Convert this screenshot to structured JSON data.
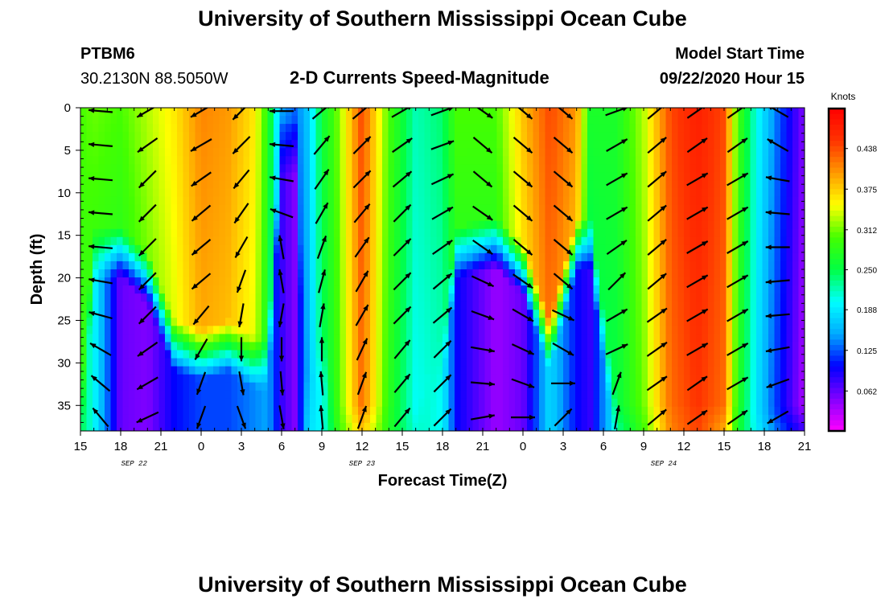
{
  "page": {
    "title_top": "University of Southern Mississippi Ocean Cube",
    "title_bottom": "University of Southern Mississippi Ocean Cube"
  },
  "header": {
    "station_id": "PTBM6",
    "station_coords": "30.2130N 88.5050W",
    "plot_title": "2-D Currents Speed-Magnitude",
    "model_start_label": "Model Start Time",
    "model_start_value": "09/22/2020 Hour 15"
  },
  "chart_data": {
    "type": "heatmap",
    "title": "2-D Currents Speed-Magnitude",
    "xlabel": "Forecast Time(Z)",
    "ylabel": "Depth (ft)",
    "x_ticks": [
      "15",
      "18",
      "21",
      "0",
      "3",
      "6",
      "9",
      "12",
      "15",
      "18",
      "21",
      "0",
      "3",
      "6",
      "9",
      "12",
      "15",
      "18",
      "21"
    ],
    "x_range_hours": [
      0,
      54
    ],
    "date_labels": [
      {
        "text": "SEP 22",
        "hour": 4
      },
      {
        "text": "SEP 23",
        "hour": 21
      },
      {
        "text": "SEP 24",
        "hour": 43.5
      }
    ],
    "y_ticks": [
      0,
      5,
      10,
      15,
      20,
      25,
      30,
      35
    ],
    "y_range_ft": [
      0,
      38
    ],
    "colorbar": {
      "label": "Knots",
      "range": [
        0,
        0.5
      ],
      "ticks": [
        "0.438",
        "0.375",
        "0.312",
        "0.250",
        "0.188",
        "0.125",
        "0.062"
      ],
      "tick_values": [
        0.438,
        0.375,
        0.312,
        0.25,
        0.188,
        0.125,
        0.062
      ]
    },
    "vector_depths_ft": [
      0,
      4,
      8,
      12,
      16,
      20,
      24,
      28,
      32,
      36
    ],
    "speed_by_hour": [
      {
        "hour": 0,
        "surface": 0.3,
        "bottom": 0.25,
        "layer_top_ft": 38
      },
      {
        "hour": 1,
        "surface": 0.31,
        "bottom": 0.2,
        "layer_top_ft": 17
      },
      {
        "hour": 3,
        "surface": 0.3,
        "bottom": 0.06,
        "layer_top_ft": 17
      },
      {
        "hour": 5,
        "surface": 0.33,
        "bottom": 0.05,
        "layer_top_ft": 20
      },
      {
        "hour": 7,
        "surface": 0.36,
        "bottom": 0.1,
        "layer_top_ft": 28
      },
      {
        "hour": 9,
        "surface": 0.41,
        "bottom": 0.12,
        "layer_top_ft": 29
      },
      {
        "hour": 11,
        "surface": 0.4,
        "bottom": 0.12,
        "layer_top_ft": 28
      },
      {
        "hour": 13,
        "surface": 0.36,
        "bottom": 0.14,
        "layer_top_ft": 30
      },
      {
        "hour": 14,
        "surface": 0.28,
        "bottom": 0.15,
        "layer_top_ft": 30
      },
      {
        "hour": 15,
        "surface": 0.15,
        "bottom": 0.08,
        "layer_top_ft": 5
      },
      {
        "hour": 16,
        "surface": 0.13,
        "bottom": 0.05,
        "layer_top_ft": 5
      },
      {
        "hour": 17,
        "surface": 0.17,
        "bottom": 0.18,
        "layer_top_ft": 38
      },
      {
        "hour": 18,
        "surface": 0.26,
        "bottom": 0.2,
        "layer_top_ft": 28
      },
      {
        "hour": 19,
        "surface": 0.3,
        "bottom": 0.27,
        "layer_top_ft": 38
      },
      {
        "hour": 21,
        "surface": 0.44,
        "bottom": 0.34,
        "layer_top_ft": 38
      },
      {
        "hour": 23,
        "surface": 0.3,
        "bottom": 0.27,
        "layer_top_ft": 38
      },
      {
        "hour": 25,
        "surface": 0.22,
        "bottom": 0.22,
        "layer_top_ft": 38
      },
      {
        "hour": 27,
        "surface": 0.24,
        "bottom": 0.2,
        "layer_top_ft": 30
      },
      {
        "hour": 28,
        "surface": 0.3,
        "bottom": 0.1,
        "layer_top_ft": 17
      },
      {
        "hour": 31,
        "surface": 0.3,
        "bottom": 0.04,
        "layer_top_ft": 16
      },
      {
        "hour": 33,
        "surface": 0.38,
        "bottom": 0.06,
        "layer_top_ft": 19
      },
      {
        "hour": 35,
        "surface": 0.44,
        "bottom": 0.18,
        "layer_top_ft": 28
      },
      {
        "hour": 37,
        "surface": 0.4,
        "bottom": 0.1,
        "layer_top_ft": 16
      },
      {
        "hour": 38,
        "surface": 0.27,
        "bottom": 0.08,
        "layer_top_ft": 16
      },
      {
        "hour": 40,
        "surface": 0.27,
        "bottom": 0.2,
        "layer_top_ft": 38
      },
      {
        "hour": 42,
        "surface": 0.33,
        "bottom": 0.28,
        "layer_top_ft": 38
      },
      {
        "hour": 44,
        "surface": 0.44,
        "bottom": 0.4,
        "layer_top_ft": 38
      },
      {
        "hour": 46,
        "surface": 0.47,
        "bottom": 0.44,
        "layer_top_ft": 38
      },
      {
        "hour": 48,
        "surface": 0.44,
        "bottom": 0.36,
        "layer_top_ft": 38
      },
      {
        "hour": 49,
        "surface": 0.3,
        "bottom": 0.26,
        "layer_top_ft": 38
      },
      {
        "hour": 50.5,
        "surface": 0.2,
        "bottom": 0.2,
        "layer_top_ft": 38
      },
      {
        "hour": 52,
        "surface": 0.13,
        "bottom": 0.15,
        "layer_top_ft": 38
      },
      {
        "hour": 54,
        "surface": 0.05,
        "bottom": 0.12,
        "layer_top_ft": 38
      }
    ],
    "vector_columns": [
      {
        "hour": 1.5,
        "angles_deg": [
          175,
          175,
          175,
          175,
          175,
          170,
          165,
          150,
          140,
          130
        ]
      },
      {
        "hour": 5,
        "angles_deg": [
          210,
          215,
          225,
          225,
          225,
          225,
          225,
          215,
          210,
          205
        ]
      },
      {
        "hour": 9,
        "angles_deg": [
          210,
          210,
          215,
          220,
          220,
          220,
          230,
          240,
          250,
          250
        ]
      },
      {
        "hour": 12,
        "angles_deg": [
          225,
          225,
          230,
          235,
          240,
          250,
          260,
          270,
          280,
          290
        ]
      },
      {
        "hour": 15,
        "angles_deg": [
          180,
          175,
          170,
          160,
          100,
          100,
          260,
          270,
          275,
          280
        ]
      },
      {
        "hour": 18,
        "angles_deg": [
          40,
          50,
          55,
          60,
          70,
          75,
          80,
          90,
          95,
          95
        ]
      },
      {
        "hour": 21,
        "angles_deg": [
          40,
          45,
          45,
          50,
          55,
          60,
          60,
          65,
          70,
          70
        ]
      },
      {
        "hour": 24,
        "angles_deg": [
          30,
          35,
          40,
          45,
          45,
          45,
          45,
          50,
          50,
          50
        ]
      },
      {
        "hour": 27,
        "angles_deg": [
          20,
          20,
          25,
          30,
          35,
          40,
          40,
          45,
          45,
          45
        ]
      },
      {
        "hour": 30,
        "angles_deg": [
          325,
          320,
          320,
          325,
          325,
          335,
          340,
          350,
          355,
          10
        ]
      },
      {
        "hour": 33,
        "angles_deg": [
          320,
          320,
          320,
          320,
          320,
          325,
          330,
          335,
          340,
          0
        ]
      },
      {
        "hour": 36,
        "angles_deg": [
          320,
          320,
          320,
          320,
          320,
          320,
          335,
          330,
          0,
          45
        ]
      },
      {
        "hour": 40,
        "angles_deg": [
          20,
          30,
          30,
          30,
          35,
          45,
          30,
          25,
          70,
          80
        ]
      },
      {
        "hour": 43,
        "angles_deg": [
          40,
          40,
          40,
          40,
          40,
          40,
          35,
          35,
          35,
          40
        ]
      },
      {
        "hour": 46,
        "angles_deg": [
          35,
          35,
          30,
          30,
          30,
          30,
          30,
          30,
          35,
          35
        ]
      },
      {
        "hour": 49,
        "angles_deg": [
          35,
          35,
          30,
          30,
          30,
          30,
          30,
          30,
          30,
          35
        ]
      },
      {
        "hour": 52,
        "angles_deg": [
          150,
          150,
          170,
          175,
          180,
          185,
          185,
          190,
          200,
          210
        ]
      }
    ]
  },
  "colors": {
    "arrow": "#000000",
    "axis": "#000000",
    "colormap": [
      "#ff00ff",
      "#8000ff",
      "#0000ff",
      "#00aaff",
      "#00ffff",
      "#00ff44",
      "#44ff00",
      "#ffff00",
      "#ff9900",
      "#ff3300",
      "#ff0000"
    ]
  }
}
